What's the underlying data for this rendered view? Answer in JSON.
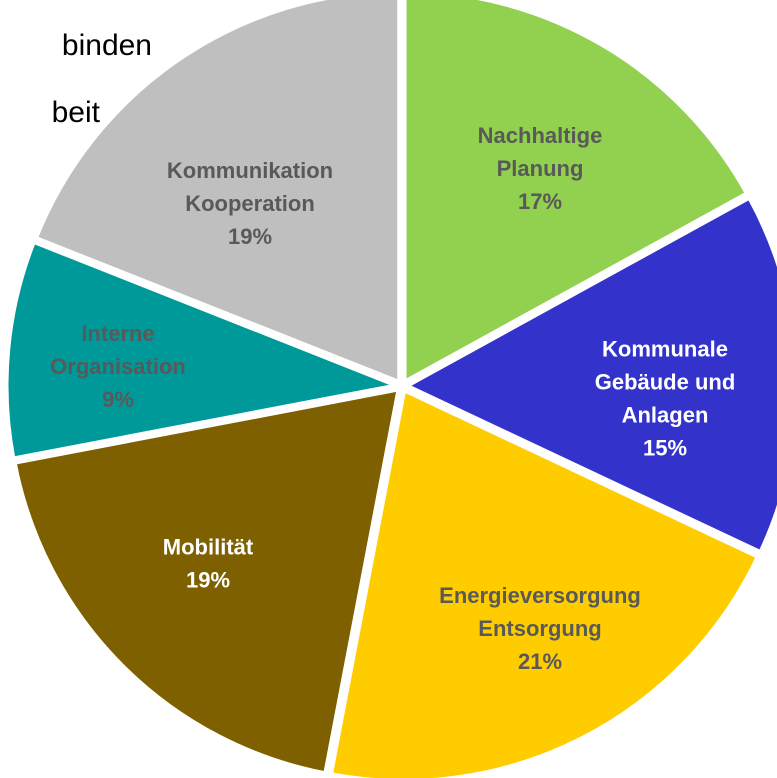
{
  "chart_data": {
    "type": "pie",
    "annotations": [
      "binden",
      "beit"
    ],
    "categories": [
      [
        "Nachhaltige",
        "Planung"
      ],
      [
        "Kommunale",
        "Gebäude und",
        "Anlagen"
      ],
      [
        "Energieversorgung",
        "Entsorgung"
      ],
      [
        "Mobilität"
      ],
      [
        "Interne",
        "Organisation"
      ],
      [
        "Kommunikation",
        "Kooperation"
      ]
    ],
    "values": [
      17,
      15,
      21,
      19,
      9,
      19
    ],
    "value_labels": [
      "17%",
      "15%",
      "21%",
      "19%",
      "9%",
      "19%"
    ],
    "colors": [
      "#92d050",
      "#3333cc",
      "#ffcc00",
      "#7f6000",
      "#009999",
      "#bfbfbf"
    ],
    "label_colors": [
      "#595959",
      "#ffffff",
      "#595959",
      "#ffffff",
      "#595959",
      "#595959"
    ]
  }
}
